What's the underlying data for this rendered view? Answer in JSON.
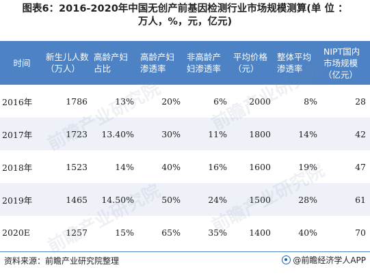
{
  "title": {
    "line1": "图表6：2016-2020年中国无创产前基因检测行业市场规模测算(单 位 ：",
    "line2": "万人，%，元，亿元)"
  },
  "table": {
    "headers": [
      "时间",
      "新生儿人数（万人）",
      "高龄产妇占比",
      "高龄产妇渗透率",
      "非高龄产妇渗透率",
      "平均价格（元）",
      "整体平均渗透率",
      "NIPT国内市场规模（亿元）"
    ],
    "rows": [
      [
        "2016年",
        "1786",
        "13%",
        "20%",
        "6%",
        "2000",
        "8%",
        "28"
      ],
      [
        "2017年",
        "1723",
        "13.40%",
        "30%",
        "11%",
        "1800",
        "14%",
        "42"
      ],
      [
        "2018年",
        "1523",
        "14%",
        "40%",
        "16%",
        "1600",
        "19%",
        "47"
      ],
      [
        "2019年",
        "1465",
        "14.50%",
        "50%",
        "24%",
        "1500",
        "28%",
        "61"
      ],
      [
        "2020E",
        "1257",
        "15%",
        "65%",
        "35%",
        "1400",
        "40%",
        "70"
      ]
    ]
  },
  "footer": {
    "source": "资料来源：前瞻产业研究院整理",
    "credit": "@前瞻经济学人APP"
  },
  "watermark": "前瞻产业研究院",
  "colors": {
    "header_bg": "#4d82c4",
    "alt_row_bg": "#eef2f8",
    "rule": "#4d82c4"
  }
}
